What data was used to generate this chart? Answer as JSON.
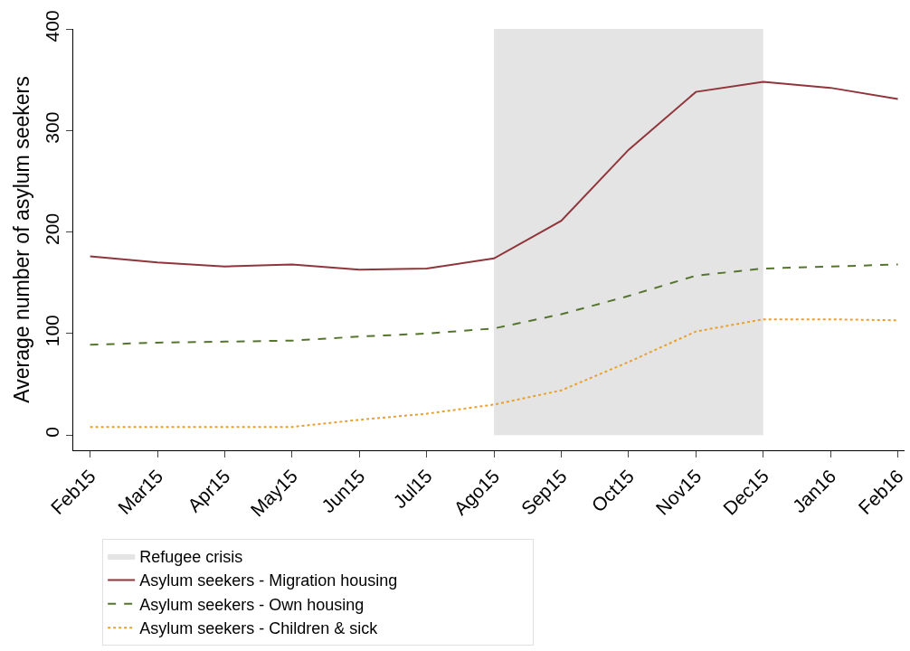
{
  "chart_data": {
    "type": "line",
    "ylabel": "Average number of asylum seekers",
    "categories": [
      "Feb15",
      "Mar15",
      "Apr15",
      "May15",
      "Jun15",
      "Jul15",
      "Ago15",
      "Sep15",
      "Oct15",
      "Nov15",
      "Dec15",
      "Jan16",
      "Feb16"
    ],
    "series": [
      {
        "name": "Asylum seekers - Migration housing",
        "color": "#90353b",
        "line_style": "solid",
        "values": [
          176,
          170,
          166,
          168,
          163,
          164,
          174,
          211,
          281,
          338,
          348,
          342,
          331
        ]
      },
      {
        "name": "Asylum seekers - Own housing",
        "color": "#55752f",
        "line_style": "dashed",
        "values": [
          89,
          91,
          92,
          93,
          97,
          100,
          105,
          119,
          137,
          157,
          164,
          166,
          168
        ]
      },
      {
        "name": "Asylum seekers - Children & sick",
        "color": "#e8a02f",
        "line_style": "dotted",
        "values": [
          8,
          8,
          8,
          8,
          15,
          21,
          30,
          44,
          72,
          102,
          114,
          114,
          113
        ]
      }
    ],
    "bands": [
      {
        "axis": "x",
        "from": "Ago15",
        "to": "Dec15",
        "label": "Refugee crisis",
        "color": "#e4e4e4"
      }
    ],
    "ylim": [
      -15,
      400
    ],
    "yticks": [
      0,
      100,
      200,
      300,
      400
    ],
    "grid": false,
    "legend": "bottom",
    "marker": "none"
  }
}
